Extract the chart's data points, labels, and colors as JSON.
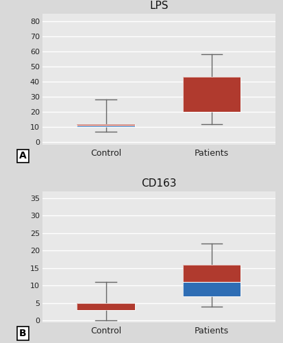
{
  "subplots": [
    {
      "title": "LPS",
      "label": "A",
      "groups": [
        "Control",
        "Patients"
      ],
      "q1": [
        10,
        20
      ],
      "median": [
        11,
        20
      ],
      "q3": [
        12,
        43
      ],
      "whisker_lo": [
        7,
        12
      ],
      "whisker_hi": [
        28,
        58
      ],
      "ylim": [
        -2,
        85
      ],
      "yticks": [
        0,
        10,
        20,
        30,
        40,
        50,
        60,
        70,
        80
      ],
      "box_color_lo": "#2e6db4",
      "box_color_hi": "#b03a2e",
      "whisker_color": "#666666"
    },
    {
      "title": "CD163",
      "label": "B",
      "groups": [
        "Control",
        "Patients"
      ],
      "q1": [
        3,
        7
      ],
      "median": [
        3,
        11
      ],
      "q3": [
        5,
        16
      ],
      "whisker_lo": [
        0,
        4
      ],
      "whisker_hi": [
        11,
        22
      ],
      "ylim": [
        -0.5,
        37
      ],
      "yticks": [
        0,
        5,
        10,
        15,
        20,
        25,
        30,
        35
      ],
      "box_color_lo": "#2e6db4",
      "box_color_hi": "#b03a2e",
      "whisker_color": "#666666"
    }
  ],
  "fig_bg_color": "#d9d9d9",
  "plot_bg": "#e8e8e8",
  "box_width": 0.55,
  "x_positions": [
    1,
    2
  ],
  "xlim": [
    0.4,
    2.6
  ]
}
